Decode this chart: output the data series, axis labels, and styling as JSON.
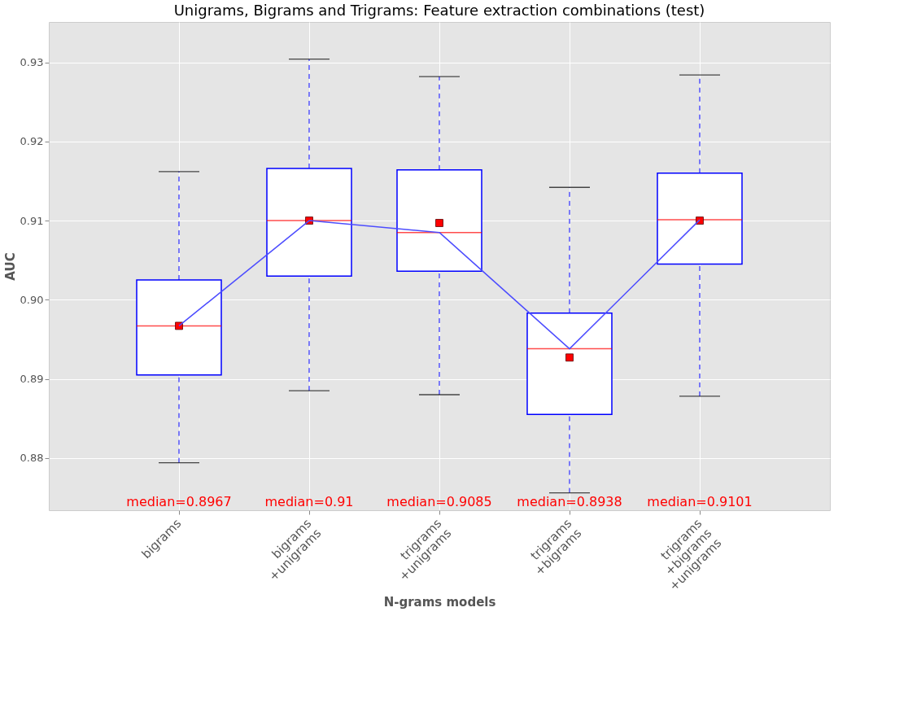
{
  "chart_data": {
    "type": "box",
    "title": "Unigrams, Bigrams and Trigrams: Feature extraction combinations (test)",
    "xlabel": "N-grams models",
    "ylabel": "AUC",
    "categories": [
      "bigrams",
      "bigrams\n+unigrams",
      "trigrams\n+unigrams",
      "trigrams\n+bigrams",
      "trigrams\n+bigrams\n+unigrams"
    ],
    "series": [
      {
        "color": "#0000ff",
        "boxes": [
          {
            "low": 0.8794,
            "q1": 0.8905,
            "median": 0.8967,
            "q3": 0.9025,
            "high": 0.9162,
            "mean": 0.8967
          },
          {
            "low": 0.8885,
            "q1": 0.903,
            "median": 0.91,
            "q3": 0.9166,
            "high": 0.9304,
            "mean": 0.91
          },
          {
            "low": 0.888,
            "q1": 0.9036,
            "median": 0.9085,
            "q3": 0.9164,
            "high": 0.9282,
            "mean": 0.9097
          },
          {
            "low": 0.8756,
            "q1": 0.8855,
            "median": 0.8938,
            "q3": 0.8983,
            "high": 0.9142,
            "mean": 0.8927
          },
          {
            "low": 0.8878,
            "q1": 0.9045,
            "median": 0.9101,
            "q3": 0.916,
            "high": 0.9284,
            "mean": 0.91
          }
        ]
      },
      {
        "type": "line",
        "color": "#4d4dff",
        "marker": "none",
        "values": [
          0.8967,
          0.91,
          0.9085,
          0.8938,
          0.9101
        ]
      }
    ],
    "annotations": [
      "median=0.8967",
      "median=0.91",
      "median=0.9085",
      "median=0.8938",
      "median=0.9101"
    ],
    "ylim": [
      0.8734,
      0.9351
    ],
    "yticks": [
      0.88,
      0.89,
      {
        "value": 0.9,
        "label": "0.90"
      },
      0.91,
      0.92,
      0.93
    ],
    "grid": true,
    "marker": "square"
  }
}
